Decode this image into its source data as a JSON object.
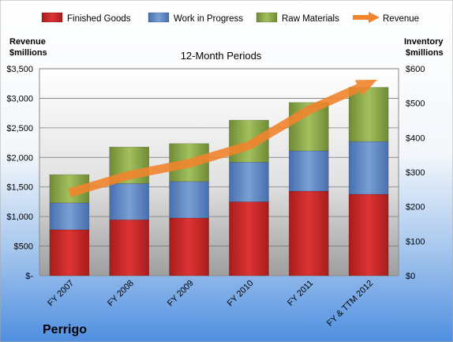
{
  "colors": {
    "finished_goods": "#cc2a2a",
    "work_in_progress": "#5f86bf",
    "raw_materials": "#8caa4a",
    "revenue": "#f0852d"
  },
  "chart_data": {
    "type": "bar",
    "subtitle": "12-Month Periods",
    "company": "Perrigo",
    "categories": [
      "FY 2007",
      "FY 2008",
      "FY 2009",
      "FY 2010",
      "FY 2011",
      "FY & TTM 2012"
    ],
    "left_axis": {
      "title_line1": "Revenue",
      "title_line2": "$millions",
      "ylim": [
        0,
        3500
      ],
      "tick_labels": [
        "$-",
        "$500",
        "$1,000",
        "$1,500",
        "$2,000",
        "$2,500",
        "$3,000",
        "$3,500"
      ]
    },
    "right_axis": {
      "title_line1": "Inventory",
      "title_line2": "$millions",
      "ylim": [
        0,
        600
      ],
      "tick_labels": [
        "$0",
        "$100",
        "$200",
        "$300",
        "$400",
        "$500",
        "$600"
      ]
    },
    "series": [
      {
        "name": "Finished Goods",
        "axis": "right",
        "stacked": true,
        "values": [
          133,
          162,
          167,
          214,
          245,
          236
        ]
      },
      {
        "name": "Work in Progress",
        "axis": "right",
        "stacked": true,
        "values": [
          78,
          105,
          106,
          115,
          117,
          153
        ]
      },
      {
        "name": "Raw Materials",
        "axis": "right",
        "stacked": true,
        "values": [
          82,
          106,
          110,
          122,
          140,
          157
        ]
      },
      {
        "name": "Revenue",
        "axis": "left",
        "type": "line",
        "values": [
          1400,
          1700,
          1900,
          2200,
          2800,
          3250
        ]
      }
    ],
    "legend_position": "top",
    "grid": true
  }
}
